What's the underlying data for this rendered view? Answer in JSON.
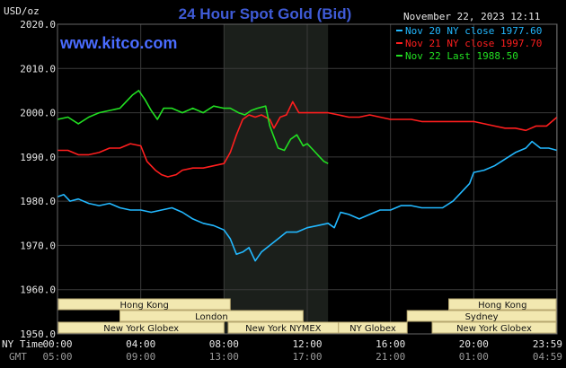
{
  "chart_data": {
    "type": "line",
    "title": "24 Hour Spot Gold (Bid)",
    "brand": "www.kitco.com",
    "ylabel": "USD/oz",
    "timestamp": "November 22, 2023 12:11",
    "ylim": [
      1950,
      2020
    ],
    "xlim_hours": [
      0,
      24
    ],
    "y_ticks": [
      "2020.0",
      "2010.0",
      "2000.0",
      "1990.0",
      "1980.0",
      "1970.0",
      "1960.0",
      "1950.0"
    ],
    "y_tick_values": [
      2020,
      2010,
      2000,
      1990,
      1980,
      1970,
      1960,
      1950
    ],
    "x_tick_hours": [
      0,
      4,
      8,
      12,
      16,
      20,
      23.98
    ],
    "x_row_labels": [
      "NY Time",
      "GMT"
    ],
    "x_ticks_ny": [
      "00:00",
      "04:00",
      "08:00",
      "12:00",
      "16:00",
      "20:00",
      "23:59"
    ],
    "x_ticks_gmt": [
      "05:00",
      "09:00",
      "13:00",
      "17:00",
      "21:00",
      "01:00",
      "04:59"
    ],
    "grid": true,
    "legend_position": "top-right",
    "highlight_hours": [
      8,
      13
    ],
    "series": [
      {
        "name": "Nov 20 NY close 1977.60",
        "color": "#22b8ff",
        "points": [
          [
            0,
            1981
          ],
          [
            0.3,
            1981.5
          ],
          [
            0.6,
            1980
          ],
          [
            1,
            1980.5
          ],
          [
            1.5,
            1979.5
          ],
          [
            2,
            1979
          ],
          [
            2.5,
            1979.5
          ],
          [
            3,
            1978.5
          ],
          [
            3.5,
            1978
          ],
          [
            4,
            1978
          ],
          [
            4.5,
            1977.5
          ],
          [
            5,
            1978
          ],
          [
            5.5,
            1978.5
          ],
          [
            6,
            1977.5
          ],
          [
            6.5,
            1976
          ],
          [
            7,
            1975
          ],
          [
            7.5,
            1974.5
          ],
          [
            8,
            1973.5
          ],
          [
            8.3,
            1971.5
          ],
          [
            8.6,
            1968
          ],
          [
            8.9,
            1968.5
          ],
          [
            9.2,
            1969.5
          ],
          [
            9.5,
            1966.5
          ],
          [
            9.8,
            1968.5
          ],
          [
            10.2,
            1970
          ],
          [
            10.6,
            1971.5
          ],
          [
            11,
            1973
          ],
          [
            11.5,
            1973
          ],
          [
            12,
            1974
          ],
          [
            12.5,
            1974.5
          ],
          [
            13,
            1975
          ],
          [
            13.3,
            1974
          ],
          [
            13.6,
            1977.5
          ],
          [
            14,
            1977
          ],
          [
            14.5,
            1976
          ],
          [
            15,
            1977
          ],
          [
            15.5,
            1978
          ],
          [
            16,
            1978
          ],
          [
            16.5,
            1979
          ],
          [
            17,
            1979
          ],
          [
            17.5,
            1978.5
          ],
          [
            18,
            1978.5
          ],
          [
            18.5,
            1978.5
          ],
          [
            19,
            1980
          ],
          [
            19.5,
            1982.5
          ],
          [
            19.8,
            1984
          ],
          [
            20,
            1986.5
          ],
          [
            20.5,
            1987
          ],
          [
            21,
            1988
          ],
          [
            21.5,
            1989.5
          ],
          [
            22,
            1991
          ],
          [
            22.5,
            1992
          ],
          [
            22.8,
            1993.5
          ],
          [
            23.2,
            1992
          ],
          [
            23.6,
            1992
          ],
          [
            24,
            1991.5
          ]
        ]
      },
      {
        "name": "Nov 21 NY close 1997.70",
        "color": "#ff1e1e",
        "points": [
          [
            0,
            1991.5
          ],
          [
            0.5,
            1991.5
          ],
          [
            1,
            1990.5
          ],
          [
            1.5,
            1990.5
          ],
          [
            2,
            1991
          ],
          [
            2.5,
            1992
          ],
          [
            3,
            1992
          ],
          [
            3.5,
            1993
          ],
          [
            4,
            1992.5
          ],
          [
            4.3,
            1989
          ],
          [
            4.7,
            1987
          ],
          [
            5,
            1986
          ],
          [
            5.3,
            1985.5
          ],
          [
            5.7,
            1986
          ],
          [
            6,
            1987
          ],
          [
            6.5,
            1987.5
          ],
          [
            7,
            1987.5
          ],
          [
            7.5,
            1988
          ],
          [
            8,
            1988.5
          ],
          [
            8.3,
            1991
          ],
          [
            8.6,
            1995
          ],
          [
            8.9,
            1998.5
          ],
          [
            9.2,
            1999.5
          ],
          [
            9.5,
            1999
          ],
          [
            9.8,
            1999.5
          ],
          [
            10.2,
            1998.5
          ],
          [
            10.4,
            1996.5
          ],
          [
            10.7,
            1999
          ],
          [
            11,
            1999.5
          ],
          [
            11.3,
            2002.5
          ],
          [
            11.6,
            2000
          ],
          [
            12,
            2000
          ],
          [
            12.5,
            2000
          ],
          [
            13,
            2000
          ],
          [
            13.5,
            1999.5
          ],
          [
            14,
            1999
          ],
          [
            14.5,
            1999
          ],
          [
            15,
            1999.5
          ],
          [
            15.5,
            1999
          ],
          [
            16,
            1998.5
          ],
          [
            16.5,
            1998.5
          ],
          [
            17,
            1998.5
          ],
          [
            17.5,
            1998
          ],
          [
            18,
            1998
          ],
          [
            18.5,
            1998
          ],
          [
            19,
            1998
          ],
          [
            19.5,
            1998
          ],
          [
            20,
            1998
          ],
          [
            20.5,
            1997.5
          ],
          [
            21,
            1997
          ],
          [
            21.5,
            1996.5
          ],
          [
            22,
            1996.5
          ],
          [
            22.5,
            1996
          ],
          [
            23,
            1997
          ],
          [
            23.5,
            1997
          ],
          [
            24,
            1999
          ]
        ]
      },
      {
        "name": "Nov 22 Last 1988.50",
        "color": "#22e022",
        "points": [
          [
            0,
            1998.5
          ],
          [
            0.5,
            1999
          ],
          [
            1,
            1997.5
          ],
          [
            1.5,
            1999
          ],
          [
            2,
            2000
          ],
          [
            2.5,
            2000.5
          ],
          [
            3,
            2001
          ],
          [
            3.3,
            2002.5
          ],
          [
            3.6,
            2004
          ],
          [
            3.9,
            2005
          ],
          [
            4.2,
            2003
          ],
          [
            4.5,
            2000.5
          ],
          [
            4.8,
            1998.5
          ],
          [
            5.1,
            2001
          ],
          [
            5.5,
            2001
          ],
          [
            6,
            2000
          ],
          [
            6.5,
            2001
          ],
          [
            7,
            2000
          ],
          [
            7.5,
            2001.5
          ],
          [
            8,
            2001
          ],
          [
            8.3,
            2001
          ],
          [
            8.7,
            2000
          ],
          [
            9,
            1999.5
          ],
          [
            9.3,
            2000.5
          ],
          [
            9.6,
            2001
          ],
          [
            10,
            2001.5
          ],
          [
            10.2,
            1997
          ],
          [
            10.4,
            1994.5
          ],
          [
            10.6,
            1992
          ],
          [
            10.9,
            1991.5
          ],
          [
            11.2,
            1994
          ],
          [
            11.5,
            1995
          ],
          [
            11.8,
            1992.5
          ],
          [
            12,
            1993
          ],
          [
            12.3,
            1991.5
          ],
          [
            12.6,
            1990
          ],
          [
            12.8,
            1989
          ],
          [
            13,
            1988.5
          ]
        ]
      }
    ],
    "sessions": [
      {
        "label": "Hong Kong",
        "row": 0,
        "start_hour": 0,
        "end_hour": 8.3
      },
      {
        "label": "Hong Kong",
        "row": 0,
        "start_hour": 18.8,
        "end_hour": 24
      },
      {
        "label": "London",
        "row": 1,
        "start_hour": 3,
        "end_hour": 11.8
      },
      {
        "label": "Sydney",
        "row": 1,
        "start_hour": 16.8,
        "end_hour": 24
      },
      {
        "label": "New York Globex",
        "row": 2,
        "start_hour": 0,
        "end_hour": 8
      },
      {
        "label": "New York NYMEX",
        "row": 2,
        "start_hour": 8.2,
        "end_hour": 13.5
      },
      {
        "label": "NY Globex",
        "row": 2,
        "start_hour": 13.5,
        "end_hour": 16.8
      },
      {
        "label": "New York Globex",
        "row": 2,
        "start_hour": 18,
        "end_hour": 24
      }
    ]
  }
}
